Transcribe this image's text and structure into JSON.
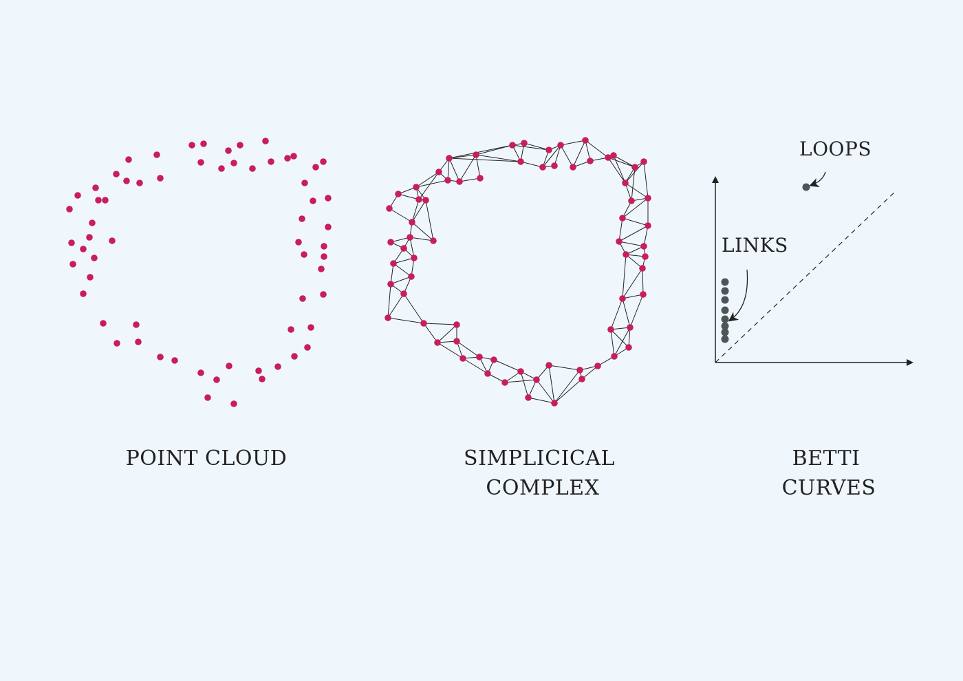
{
  "diagram": {
    "colors": {
      "background": "#f0f7fc",
      "point": "#c81e5a",
      "edge": "#222222",
      "persistence_point": "#4d5656",
      "text": "#222222"
    },
    "panels": [
      {
        "id": "point-cloud",
        "caption_lines": [
          "POINT CLOUD"
        ]
      },
      {
        "id": "simplicial-complex",
        "caption_lines": [
          "SIMPLICICAL",
          "COMPLEX"
        ]
      },
      {
        "id": "betti-curves",
        "caption_lines": [
          "BETTI",
          "CURVES"
        ]
      }
    ],
    "annotations": {
      "loops": "LOOPS",
      "links": "LINKS"
    }
  }
}
